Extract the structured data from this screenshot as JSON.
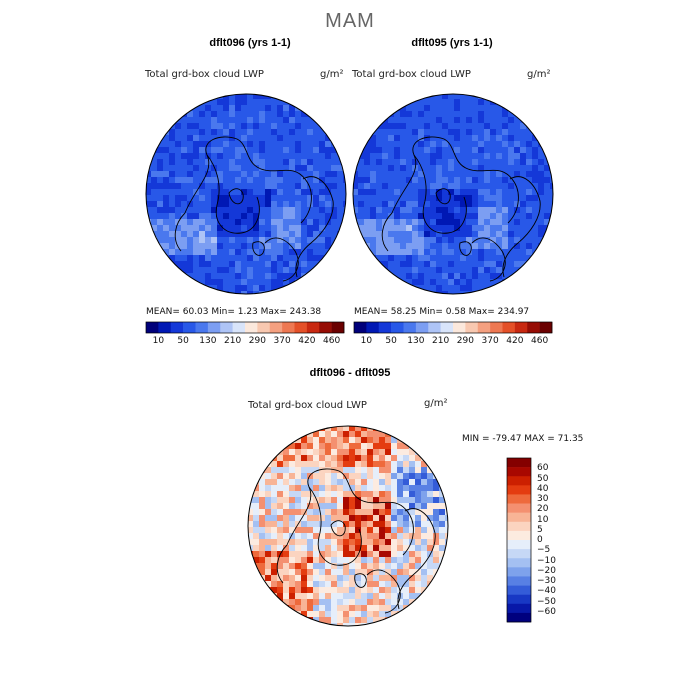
{
  "season_title": "MAM",
  "panels": [
    {
      "title": "dflt096 (yrs 1-1)",
      "field": "Total grd-box cloud LWP",
      "units": "g/m²",
      "stats": "MEAN=  60.03  Min=    1.23  Max= 243.38"
    },
    {
      "title": "dflt095 (yrs 1-1)",
      "field": "Total grd-box cloud LWP",
      "units": "g/m²",
      "stats": "MEAN=  58.25  Min=    0.58  Max= 234.97"
    }
  ],
  "abs_colorbar": {
    "colors": [
      "#00007a",
      "#0018b4",
      "#1438d8",
      "#2858e8",
      "#4a78ee",
      "#7c9ef2",
      "#aec4f6",
      "#d8e4fa",
      "#fbe8dc",
      "#f8c8b0",
      "#f4a080",
      "#ee7852",
      "#e45028",
      "#c82810",
      "#960c04",
      "#6a0000"
    ],
    "labels": [
      "10",
      "50",
      "130",
      "210",
      "290",
      "370",
      "420",
      "460"
    ]
  },
  "diff_panel": {
    "title": "dflt096 - dflt095",
    "field": "Total grd-box cloud LWP",
    "units": "g/m²",
    "stats": "MIN = -79.47 MAX =  71.35"
  },
  "diff_colorbar": {
    "colors_top_to_bottom": [
      "#840000",
      "#a80800",
      "#cc2000",
      "#e43c10",
      "#ee6a3c",
      "#f49070",
      "#f8b496",
      "#fbd4c0",
      "#fcebe0",
      "#e6eefa",
      "#c6d8f6",
      "#a4c0f2",
      "#7ea2ec",
      "#5880e4",
      "#345cd8",
      "#1838c4",
      "#0818a8",
      "#00007e"
    ],
    "labels": [
      "60",
      "50",
      "40",
      "30",
      "20",
      "10",
      "5",
      "0",
      "−5",
      "−10",
      "−20",
      "−30",
      "−40",
      "−50",
      "−60"
    ]
  }
}
